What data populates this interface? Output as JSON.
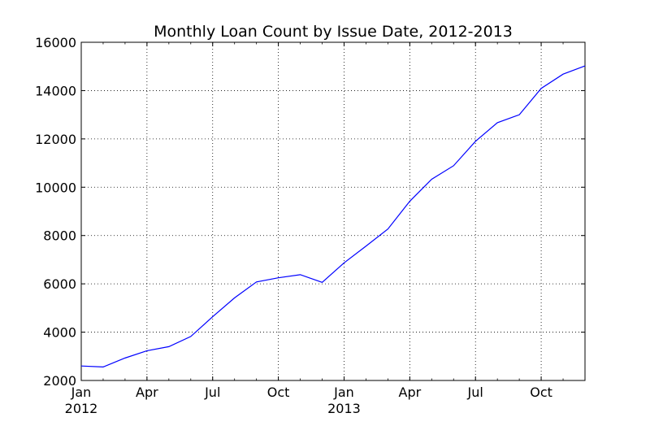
{
  "chart_data": {
    "type": "line",
    "title": "Monthly Loan Count by Issue Date, 2012-2013",
    "xlabel": "",
    "ylabel": "",
    "x": [
      "2012-01",
      "2012-02",
      "2012-03",
      "2012-04",
      "2012-05",
      "2012-06",
      "2012-07",
      "2012-08",
      "2012-09",
      "2012-10",
      "2012-11",
      "2012-12",
      "2013-01",
      "2013-02",
      "2013-03",
      "2013-04",
      "2013-05",
      "2013-06",
      "2013-07",
      "2013-08",
      "2013-09",
      "2013-10",
      "2013-11",
      "2013-12"
    ],
    "series": [
      {
        "values": [
          2600,
          2560,
          2930,
          3230,
          3400,
          3820,
          4640,
          5420,
          6080,
          6250,
          6380,
          6060,
          6870,
          7560,
          8270,
          9420,
          10330,
          10890,
          11900,
          12670,
          13000,
          14090,
          14680,
          15020
        ],
        "color": "#0000ff"
      }
    ],
    "ylim": [
      2000,
      16000
    ],
    "yticks": [
      2000,
      4000,
      6000,
      8000,
      10000,
      12000,
      14000,
      16000
    ],
    "xticks": [
      {
        "month": "Jan",
        "year": "2012",
        "x": "2012-01"
      },
      {
        "month": "Apr",
        "year": "",
        "x": "2012-04"
      },
      {
        "month": "Jul",
        "year": "",
        "x": "2012-07"
      },
      {
        "month": "Oct",
        "year": "",
        "x": "2012-10"
      },
      {
        "month": "Jan",
        "year": "2013",
        "x": "2013-01"
      },
      {
        "month": "Apr",
        "year": "",
        "x": "2013-04"
      },
      {
        "month": "Jul",
        "year": "",
        "x": "2013-07"
      },
      {
        "month": "Oct",
        "year": "",
        "x": "2013-10"
      }
    ],
    "xlim": [
      "2012-01",
      "2013-12"
    ],
    "grid": true,
    "grid_style": "dotted",
    "legend": "none"
  }
}
